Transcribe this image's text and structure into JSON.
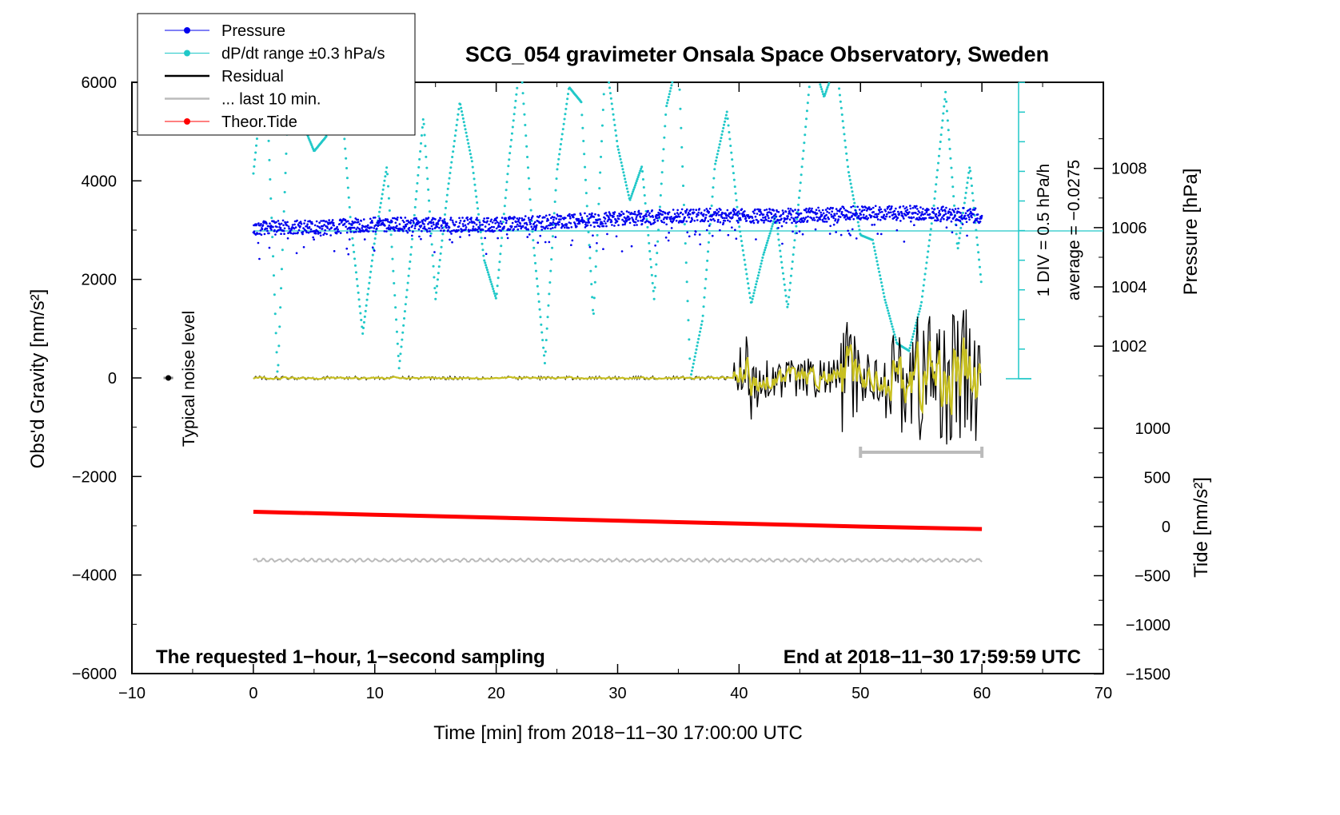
{
  "chart_data": {
    "type": "line",
    "title": "SCG_054 gravimeter Onsala Space Observatory, Sweden",
    "xlabel": "Time [min] from 2018−11−30 17:00:00 UTC",
    "ylabel": "Obs'd Gravity [nm/s²]",
    "ylabel_right_pressure": "Pressure [hPa]",
    "ylabel_right_tide": "Tide [nm/s²]",
    "xlim": [
      -10,
      70
    ],
    "ylim": [
      -6000,
      6000
    ],
    "x_ticks": [
      "−10",
      "0",
      "10",
      "20",
      "30",
      "40",
      "50",
      "60",
      "70"
    ],
    "y_ticks": [
      "6000",
      "4000",
      "2000",
      "0",
      "−2000",
      "−4000",
      "−6000"
    ],
    "pressure_ticks": [
      "1008",
      "1006",
      "1004",
      "1002"
    ],
    "pressure_tick_values": [
      1008,
      1006,
      1004,
      1002
    ],
    "tide_ticks": [
      "1000",
      "500",
      "0",
      "−500",
      "−1000",
      "−1500"
    ],
    "tide_tick_values": [
      1000,
      500,
      0,
      -500,
      -1000,
      -1500
    ],
    "grid": false,
    "legend_position": "top-left",
    "legend": [
      {
        "label": "Pressure",
        "color": "#0000ee",
        "marker": "dot"
      },
      {
        "label": "dP/dt range ±0.3 hPa/s",
        "color": "#20c8c8",
        "marker": "dot"
      },
      {
        "label": "Residual",
        "color": "#000000",
        "marker": "line"
      },
      {
        "label": "... last 10 min.",
        "color": "#bbbbbb",
        "marker": "line"
      },
      {
        "label": "Theor.Tide",
        "color": "#ff0000",
        "marker": "dot"
      }
    ],
    "annotations": {
      "bottom_left": "The requested 1−hour, 1−second sampling",
      "bottom_right": "End at 2018−11−30 17:59:59 UTC",
      "noise": "Typical noise level",
      "div": "1 DIV = 0.5 hPa/h",
      "average": "average = −0.0275"
    },
    "series": [
      {
        "name": "Pressure",
        "color": "#0000ee",
        "unit": "hPa",
        "x": [
          0,
          5,
          10,
          15,
          20,
          25,
          30,
          35,
          40,
          45,
          50,
          55,
          60
        ],
        "values": [
          1006.0,
          1006.0,
          1006.1,
          1006.1,
          1006.1,
          1006.2,
          1006.3,
          1006.4,
          1006.4,
          1006.4,
          1006.5,
          1006.5,
          1006.4
        ]
      },
      {
        "name": "dP/dt range ±0.3 hPa/s",
        "color": "#20c8c8",
        "unit": "nm/s²",
        "x": [
          0,
          1,
          2,
          3,
          4,
          5,
          6,
          7,
          8,
          9,
          10,
          11,
          12,
          13,
          14,
          15,
          16,
          17,
          18,
          19,
          20,
          21,
          22,
          23,
          24,
          25,
          26,
          27,
          28,
          29,
          30,
          31,
          32,
          33,
          34,
          35,
          36,
          37,
          38,
          39,
          40,
          41,
          42,
          43,
          44,
          45,
          46,
          47,
          48,
          49,
          50,
          51,
          52,
          53,
          54,
          55,
          56,
          57,
          58,
          59,
          60
        ],
        "values": [
          4150,
          6500,
          0,
          6500,
          5200,
          4600,
          4900,
          6500,
          3200,
          900,
          2800,
          4300,
          200,
          2600,
          5300,
          1600,
          3800,
          5600,
          4400,
          2400,
          1600,
          4300,
          6500,
          2900,
          300,
          4200,
          5900,
          5600,
          1200,
          6500,
          4700,
          3600,
          4300,
          1600,
          5500,
          6500,
          0,
          1200,
          4300,
          5400,
          3100,
          1500,
          2500,
          3300,
          1400,
          3800,
          6500,
          5700,
          6400,
          4200,
          2900,
          2800,
          1600,
          700,
          550,
          1500,
          3400,
          5800,
          2600,
          4300,
          1800
        ]
      },
      {
        "name": "Residual",
        "color": "#000000",
        "unit": "nm/s²",
        "x": [
          0,
          39.5,
          40,
          41,
          42,
          43,
          44,
          45,
          46,
          47,
          48,
          48.5,
          49,
          50,
          51,
          52,
          53,
          54,
          55,
          55.5,
          56,
          57,
          58,
          59,
          59.5,
          60
        ],
        "values": [
          0,
          0,
          1100,
          -900,
          400,
          -300,
          250,
          -250,
          300,
          -300,
          300,
          1100,
          -1200,
          600,
          -500,
          800,
          -1000,
          1300,
          -1500,
          -2200,
          1200,
          -1400,
          1500,
          -1500,
          1700,
          0
        ]
      },
      {
        "name": "... last 10 min.",
        "color": "#bbbbbb",
        "unit": "nm/s²",
        "x": [
          0,
          10,
          20,
          30,
          40,
          50,
          60
        ],
        "values": [
          -3700,
          -3700,
          -3700,
          -3700,
          -3700,
          -3700,
          -3700
        ]
      },
      {
        "name": "Theor.Tide",
        "color": "#ff0000",
        "unit": "nm/s²",
        "x": [
          0,
          10,
          20,
          30,
          40,
          50,
          60
        ],
        "values": [
          150,
          120,
          90,
          60,
          30,
          0,
          -25
        ]
      }
    ]
  }
}
